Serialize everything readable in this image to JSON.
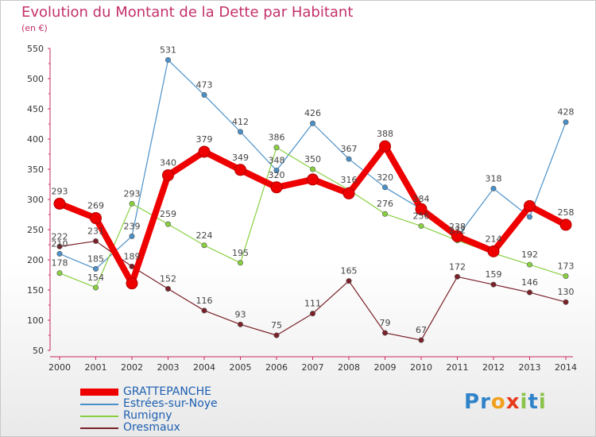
{
  "header": {
    "title": "Evolution du Montant de la Dette par Habitant",
    "unit": "(en €)"
  },
  "brand": {
    "letters": [
      "P",
      "r",
      "o",
      "x",
      "i",
      "t",
      "i"
    ],
    "colors": [
      "#2f83c8",
      "#2f83c8",
      "#f0a01c",
      "#e63b1c",
      "#8bc34a",
      "#2f83c8",
      "#8bc34a"
    ]
  },
  "chart_data": {
    "type": "line",
    "title": "Evolution du Montant de la Dette par Habitant",
    "ylabel": "(en €)",
    "xlabel": "",
    "x": [
      "2000",
      "2001",
      "2002",
      "2003",
      "2004",
      "2005",
      "2006",
      "2007",
      "2008",
      "2009",
      "2010",
      "2011",
      "2012",
      "2013",
      "2014"
    ],
    "ylim": [
      50,
      550
    ],
    "yticks": [
      50,
      100,
      150,
      200,
      250,
      300,
      350,
      400,
      450,
      500,
      550
    ],
    "grid": false,
    "legend_position": "bottom-left",
    "series": [
      {
        "name": "GRATTEPANCHE",
        "color": "#ee0000",
        "values": [
          293,
          269,
          161,
          340,
          379,
          349,
          320,
          333,
          310,
          388,
          284,
          239,
          214,
          289,
          258
        ],
        "labels": [
          "293",
          "269",
          "",
          "340",
          "379",
          "349",
          "320",
          "",
          "",
          "388",
          "",
          "",
          "214",
          "",
          "258"
        ]
      },
      {
        "name": "Estrées-sur-Noye",
        "color": "#4a90c8",
        "values": [
          210,
          185,
          239,
          531,
          473,
          412,
          348,
          426,
          367,
          320,
          284,
          238,
          318,
          271,
          428
        ],
        "labels": [
          "210",
          "185",
          "239",
          "531",
          "473",
          "412",
          "348",
          "426",
          "367",
          "320",
          "284",
          "238",
          "318",
          "",
          "428"
        ]
      },
      {
        "name": "Rumigny",
        "color": "#88d040",
        "values": [
          178,
          154,
          293,
          259,
          224,
          195,
          386,
          350,
          316,
          276,
          256,
          232,
          211,
          192,
          173
        ],
        "labels": [
          "178",
          "154",
          "293",
          "259",
          "224",
          "195",
          "386",
          "350",
          "316",
          "276",
          "256",
          "232",
          "",
          "192",
          "173"
        ]
      },
      {
        "name": "Oresmaux",
        "color": "#7a2028",
        "values": [
          222,
          231,
          189,
          152,
          116,
          93,
          75,
          111,
          165,
          79,
          67,
          172,
          159,
          146,
          130
        ],
        "labels": [
          "222",
          "231",
          "189",
          "152",
          "116",
          "93",
          "75",
          "111",
          "165",
          "79",
          "67",
          "172",
          "159",
          "146",
          "130"
        ]
      }
    ]
  }
}
